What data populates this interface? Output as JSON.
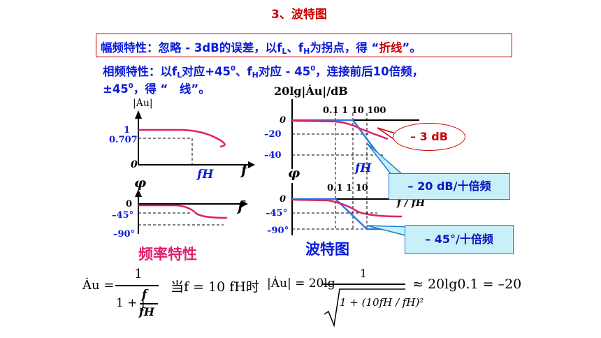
{
  "title": "3、波特图",
  "amp_line": {
    "p1": "幅频特性：忽略 - 3dB的误差，以f",
    "sub_L": "L",
    "p2": "、f",
    "sub_H": "H",
    "p3": "为拐点，得 “",
    "highlight": "折线",
    "p4": "”。"
  },
  "phase_line": {
    "p1": "相频特性：以f",
    "sub_L": "L",
    "p2": "对应+45",
    "sup1": "0",
    "p3": "、f",
    "sub_H": "H",
    "p4": "对应 - 45",
    "sup2": "0",
    "p5": "，连接前后10倍频，",
    "line2_p1": "±45",
    "sup3": "0",
    "line2_p2": "，得 “　线”。"
  },
  "left_plot": {
    "amp_axis_label": "|Ȧu|",
    "tick_1": "1",
    "tick_0707": "0.707",
    "tick_0": "0",
    "x_label": "f",
    "fH_label": "fH",
    "phi_label": "φ",
    "phase_tick_0": "0",
    "phase_tick_45": "–45°",
    "phase_tick_90": "–90°",
    "phase_x_label": "f"
  },
  "right_plot": {
    "amp_axis_label": "20lg|Ȧu|/dB",
    "decades": "0.1   1   10 100",
    "tick_0": "0",
    "tick_20": "–20",
    "tick_40": "–40",
    "fH_label": "fH",
    "phi_label": "φ",
    "phase_decades": "0.1  1  10",
    "phase_tick_0": "0",
    "phase_tick_45": "–45°",
    "phase_tick_90": "–90°",
    "x_label_suffix": "f / fH"
  },
  "callouts": {
    "minus3db": "– 3 dB",
    "minus20": "– 20 dB/十倍频",
    "minus45": "– 45°/十倍频"
  },
  "captions": {
    "freq": "频率特性",
    "bode": "波特图"
  },
  "formulas": {
    "au_lhs": "Ȧu =",
    "one": "1",
    "denom_prefix": "1 + j",
    "f": "f",
    "fH": "fH",
    "when": "当f = 10 fH时",
    "mag_lhs": "|Ȧu| = 20lg",
    "sqrt_inner": "1 + (10fH / fH)²",
    "result": "≈ 20lg0.1 = –20"
  },
  "colors": {
    "red": "#cc0000",
    "pink": "#e01f6e",
    "blue": "#0a1ad8",
    "callout_fill": "#c8f0f8"
  }
}
